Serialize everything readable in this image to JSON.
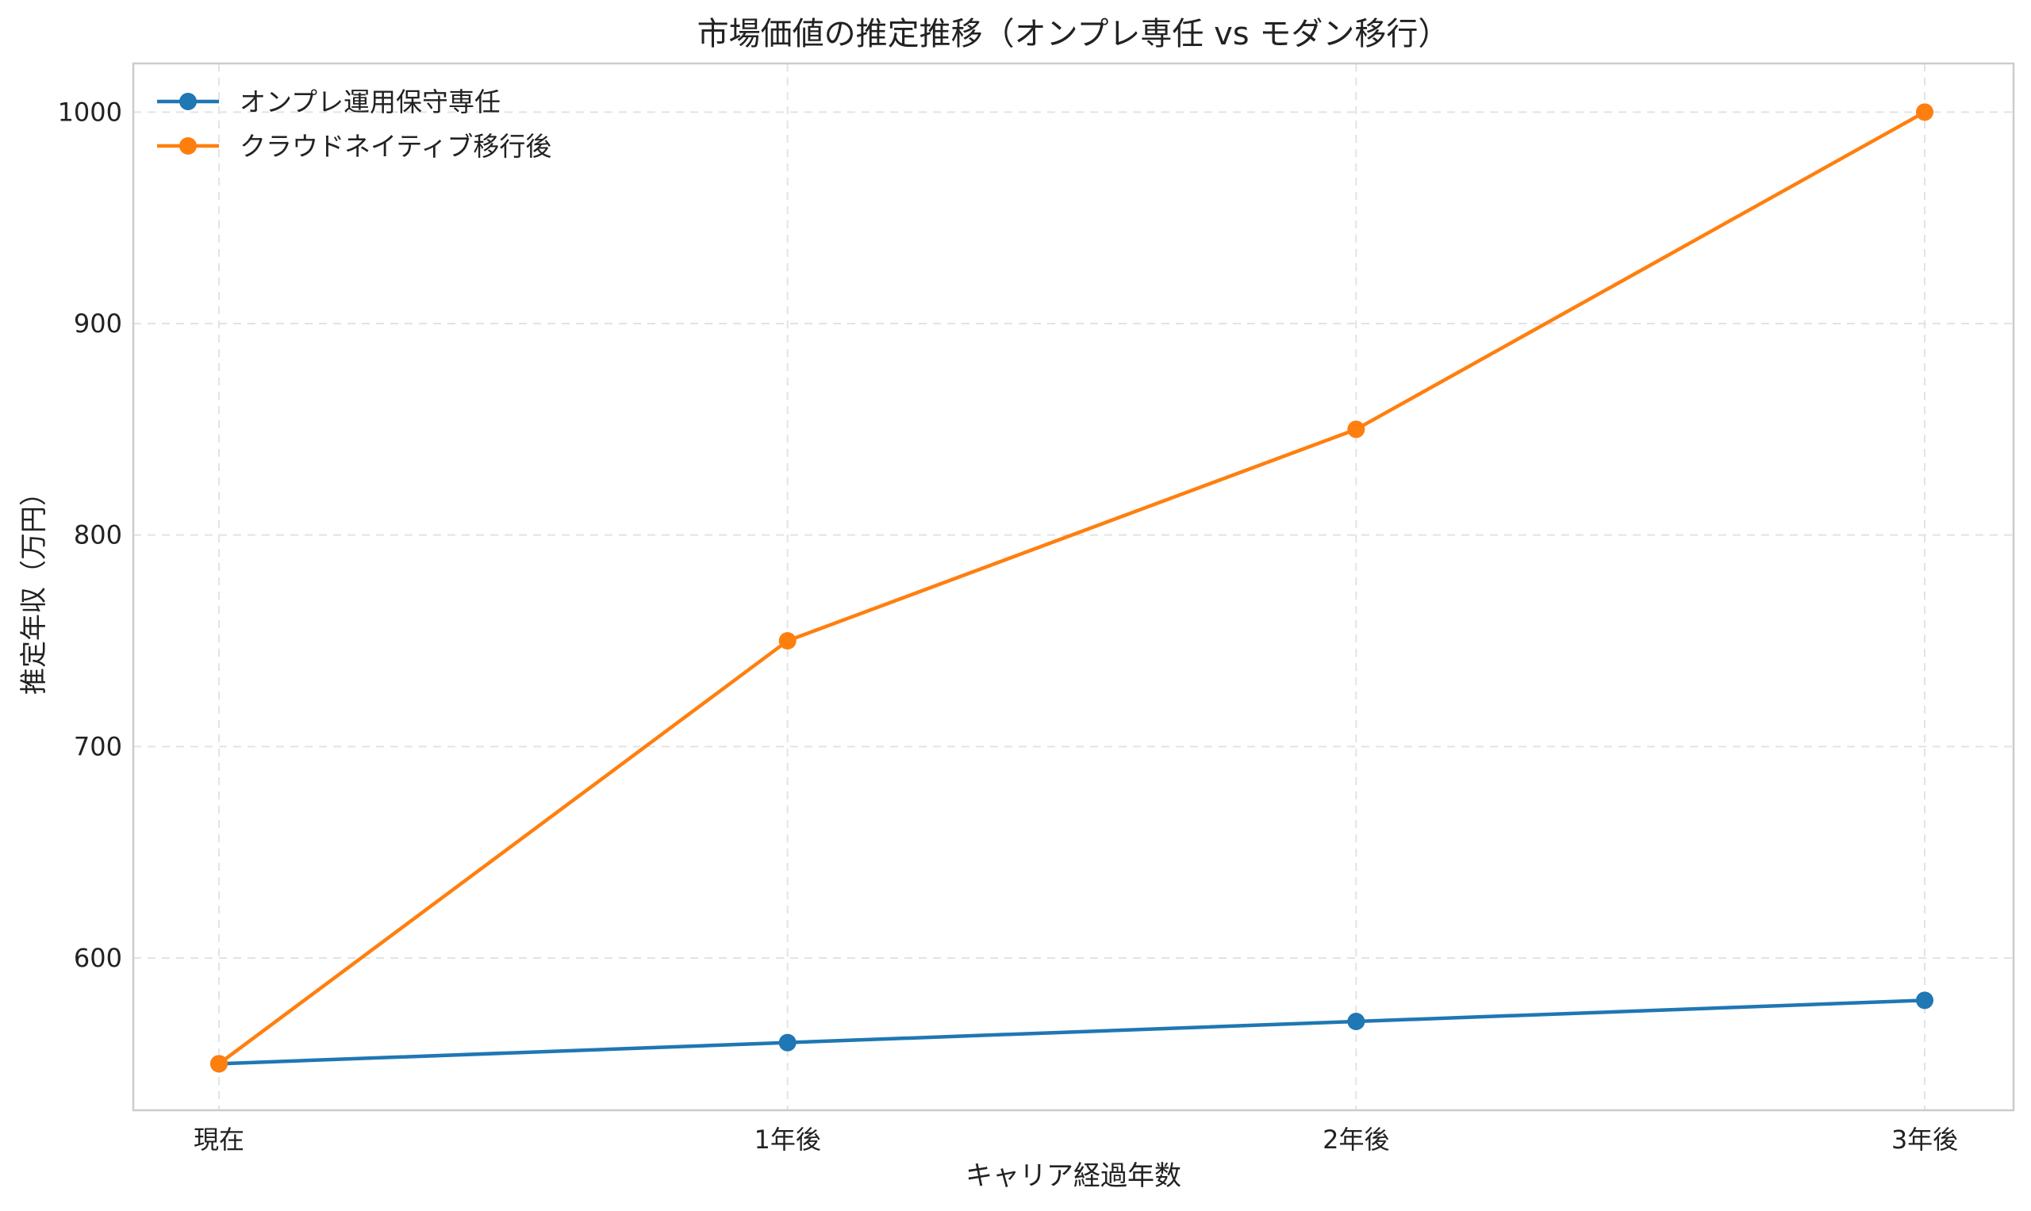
{
  "chart_data": {
    "type": "line",
    "title": "市場価値の推定推移（オンプレ専任 vs モダン移行）",
    "xlabel": "キャリア経過年数",
    "ylabel": "推定年収（万円）",
    "categories": [
      "現在",
      "1年後",
      "2年後",
      "3年後"
    ],
    "yticks": [
      600,
      700,
      800,
      900,
      1000
    ],
    "ylim": [
      528,
      1023
    ],
    "grid": true,
    "legend_position": "top-left",
    "series": [
      {
        "name": "オンプレ運用保守専任",
        "values": [
          550,
          560,
          570,
          580
        ],
        "color": "#1f77b4",
        "marker": "circle"
      },
      {
        "name": "クラウドネイティブ移行後",
        "values": [
          550,
          750,
          850,
          1000
        ],
        "color": "#ff7f0e",
        "marker": "circle"
      }
    ]
  }
}
